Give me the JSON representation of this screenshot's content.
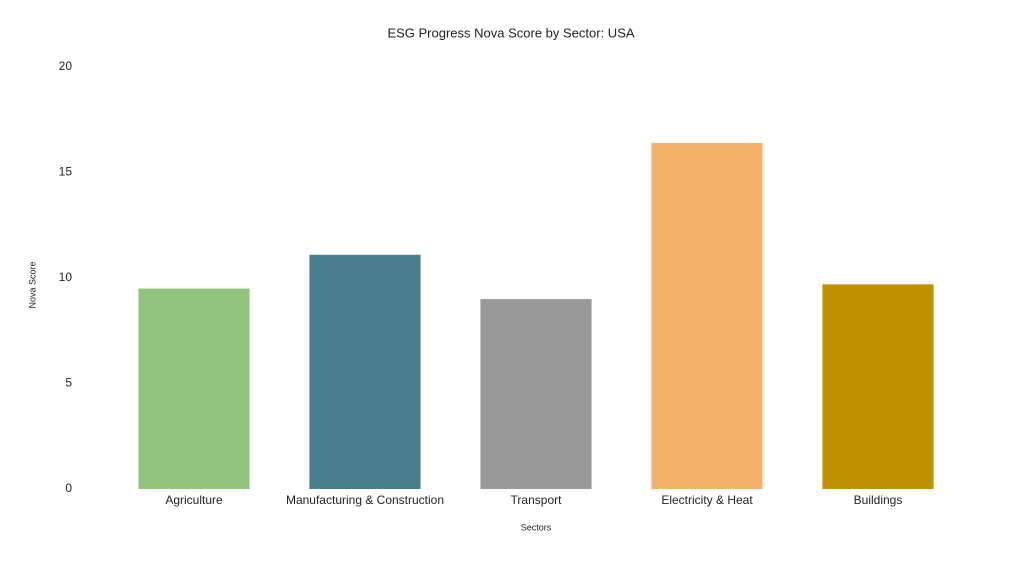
{
  "chart_data": {
    "type": "bar",
    "title": "ESG Progress Nova Score by Sector: USA",
    "x_label": "Sectors",
    "y_label": "Nova Score",
    "categories": [
      "Agriculture",
      "Manufacturing & Construction",
      "Transport",
      "Electricity & Heat",
      "Buildings"
    ],
    "values": [
      9.5,
      11.1,
      9.0,
      16.4,
      9.7
    ],
    "colors": [
      "#93c47d",
      "#47808c",
      "#999999",
      "#f6b26b",
      "#bf9000"
    ],
    "ylim": [
      0,
      20
    ],
    "yticks": [
      0,
      5,
      10,
      15,
      20
    ],
    "grid": false
  }
}
